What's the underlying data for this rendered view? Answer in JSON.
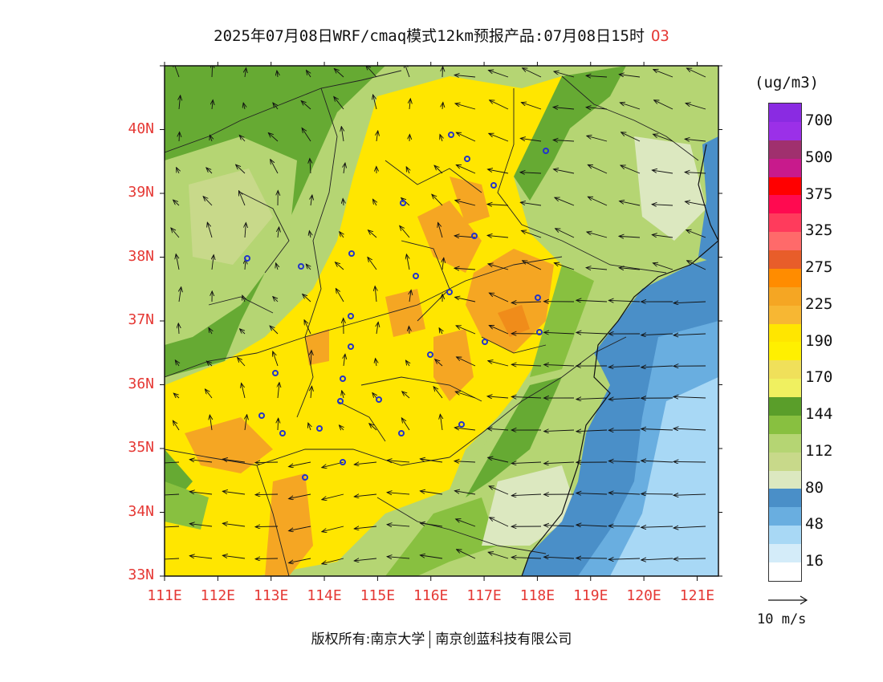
{
  "title": {
    "main": "2025年07月08日WRF/cmaq模式12km预报产品:07月08日15时",
    "species": "O3"
  },
  "map": {
    "lat_labels": [
      "40N",
      "39N",
      "38N",
      "37N",
      "36N",
      "35N",
      "34N",
      "33N"
    ],
    "lon_labels": [
      "111E",
      "112E",
      "113E",
      "114E",
      "115E",
      "116E",
      "117E",
      "118E",
      "119E",
      "120E",
      "121E"
    ],
    "lat_range": [
      33,
      41
    ],
    "lon_range": [
      111,
      121.4
    ]
  },
  "colorbar": {
    "unit": "(ug/m3)",
    "levels": [
      {
        "label": "700",
        "color": "#8a2be2"
      },
      {
        "label": "500",
        "color": "#a0306e"
      },
      {
        "label": "375",
        "color": "#ff0000"
      },
      {
        "label": "325",
        "color": "#ff6060"
      },
      {
        "label": "275",
        "color": "#e85d2a"
      },
      {
        "label": "225",
        "color": "#f5a623"
      },
      {
        "label": "190",
        "color": "#ffe600"
      },
      {
        "label": "170",
        "color": "#f0f060"
      },
      {
        "label": "144",
        "color": "#66aa33"
      },
      {
        "label": "112",
        "color": "#b5d573"
      },
      {
        "label": "80",
        "color": "#dce8c0"
      },
      {
        "label": "48",
        "color": "#69aee0"
      },
      {
        "label": "16",
        "color": "#d4ecf9"
      }
    ],
    "segment_colors": [
      "#8a2be2",
      "#9b30e8",
      "#a0306e",
      "#c81a8c",
      "#ff0000",
      "#ff0a50",
      "#ff3b5c",
      "#ff6a6a",
      "#e85d2a",
      "#ff8c00",
      "#f5a623",
      "#f7b733",
      "#ffe600",
      "#fff000",
      "#f0e05a",
      "#f0f060",
      "#5a9e2a",
      "#88c040",
      "#b5d573",
      "#c8d98a",
      "#dce8c0",
      "#4a8fc8",
      "#69aee0",
      "#a8d8f5",
      "#d4ecf9",
      "#ffffff"
    ]
  },
  "vector_reference": {
    "label": "10 m/s"
  },
  "footer": {
    "left": "版权所有:南京大学",
    "right": "南京创蓝科技有限公司"
  },
  "colors": {
    "label_red": "#e53935",
    "province_line": "#222222"
  }
}
